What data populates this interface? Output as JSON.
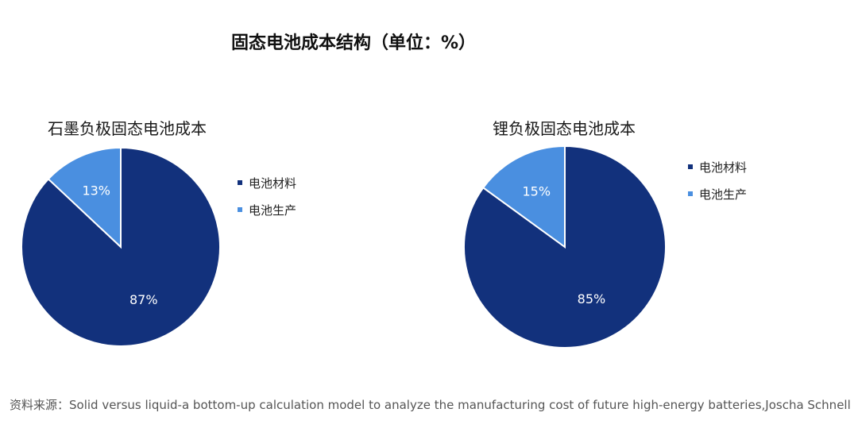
{
  "title": "固态电池成本结构（单位：%）",
  "source": "资料来源：Solid versus liquid-a bottom-up calculation model to analyze the manufacturing cost of future high-energy batteries,Joscha Schnell",
  "colors": {
    "materials": "#12317c",
    "production": "#4a8fe0"
  },
  "chart_data": [
    {
      "type": "pie",
      "title": "石墨负极固态电池成本",
      "legend_position": "right",
      "slices": [
        {
          "label": "电池材料",
          "value": 87,
          "display": "87%",
          "color": "#12317c"
        },
        {
          "label": "电池生产",
          "value": 13,
          "display": "13%",
          "color": "#4a8fe0"
        }
      ]
    },
    {
      "type": "pie",
      "title": "锂负极固态电池成本",
      "legend_position": "right",
      "slices": [
        {
          "label": "电池材料",
          "value": 85,
          "display": "85%",
          "color": "#12317c"
        },
        {
          "label": "电池生产",
          "value": 15,
          "display": "15%",
          "color": "#4a8fe0"
        }
      ]
    }
  ]
}
